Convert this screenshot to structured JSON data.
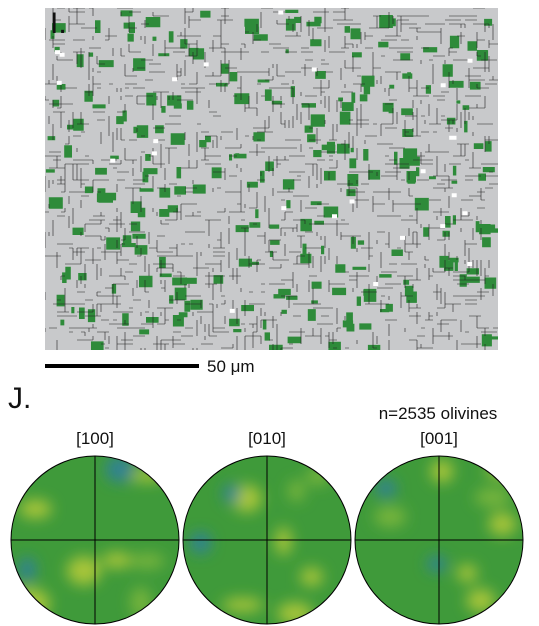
{
  "panel_i": {
    "label": "I.",
    "scale_bar": "50 μm"
  },
  "panel_j": {
    "label": "J.",
    "count_label": "n=2535 olivines",
    "pole_figures": [
      "[100]",
      "[010]",
      "[001]"
    ]
  }
}
